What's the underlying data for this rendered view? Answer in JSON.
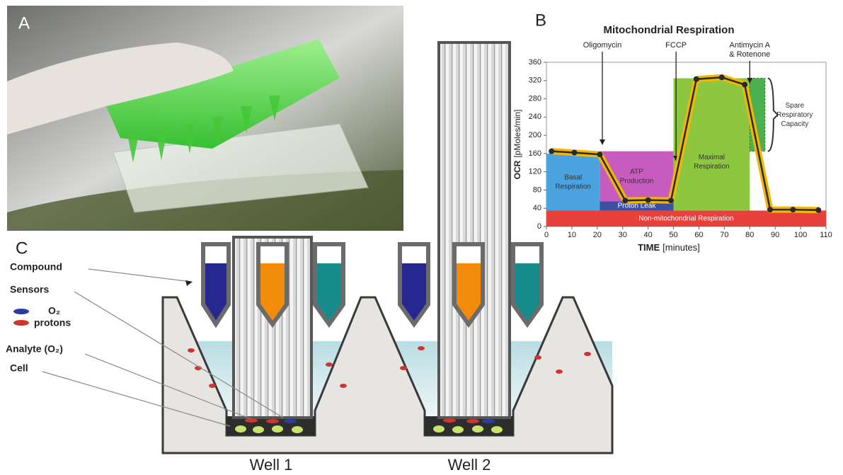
{
  "panels": {
    "a": "A",
    "b": "B",
    "c": "C"
  },
  "chart_data": {
    "type": "line",
    "title": "Mitochondrial Respiration",
    "xlabel": "TIME",
    "xlabel_unit": "[minutes]",
    "ylabel": "OCR",
    "ylabel_unit": "[pMoles/min]",
    "x": [
      2,
      11,
      21,
      31,
      40,
      49,
      59,
      69,
      78,
      88,
      97,
      107
    ],
    "values": [
      165,
      162,
      158,
      57,
      58,
      57,
      323,
      327,
      311,
      37,
      37,
      36
    ],
    "color": "#2a2a2a",
    "band_color": "#f2b705",
    "xlim": [
      0,
      110
    ],
    "xticks": [
      0,
      10,
      20,
      30,
      40,
      50,
      60,
      70,
      80,
      90,
      100,
      110
    ],
    "ylim": [
      0,
      360
    ],
    "yticks": [
      0,
      40,
      80,
      120,
      160,
      200,
      240,
      280,
      320,
      360
    ],
    "injections": [
      {
        "lines": [
          "Oligomycin"
        ],
        "x": 22
      },
      {
        "lines": [
          "FCCP"
        ],
        "x": 51
      },
      {
        "lines": [
          "Antimycin A",
          "& Rotenone"
        ],
        "x": 80
      }
    ],
    "regions": [
      {
        "lines": [
          "Non-mitochondrial Respiration"
        ],
        "color": "#e8413b",
        "x": [
          0,
          110
        ],
        "y": [
          0,
          35
        ]
      },
      {
        "lines": [
          "Basal",
          "Respiration"
        ],
        "color": "#4aa3df",
        "x": [
          0,
          21
        ],
        "y": [
          35,
          160
        ]
      },
      {
        "lines": [
          "Proton Leak"
        ],
        "color": "#3c4fa2",
        "x": [
          21,
          50
        ],
        "y": [
          35,
          55
        ]
      },
      {
        "lines": [
          "ATP",
          "Production"
        ],
        "color": "#c75cbf",
        "x": [
          21,
          50
        ],
        "y": [
          55,
          165
        ]
      },
      {
        "lines": [
          "Maximal",
          "Respiration"
        ],
        "color": "#8dc63f",
        "x": [
          50,
          80
        ],
        "y": [
          35,
          325
        ]
      },
      {
        "lines": [
          "Spare",
          "Respiratory",
          "Capacity"
        ],
        "color": "#4caf50",
        "x": [
          80,
          86
        ],
        "y": [
          165,
          325
        ]
      }
    ]
  },
  "diagram": {
    "compound": "Compound",
    "sensors": "Sensors",
    "o2": "O₂",
    "protons": "protons",
    "analyte": "Analyte (O₂)",
    "cell": "Cell",
    "wells": [
      "Well 1",
      "Well 2"
    ]
  }
}
